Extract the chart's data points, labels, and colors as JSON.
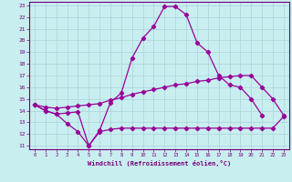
{
  "xlabel": "Windchill (Refroidissement éolien,°C)",
  "background_color": "#c8eef0",
  "grid_color": "#b0d8dc",
  "spine_color": "#770077",
  "line_color": "#990099",
  "xmin": 0,
  "xmax": 23,
  "ymin": 11,
  "ymax": 23,
  "x_ticks": [
    0,
    1,
    2,
    3,
    4,
    5,
    6,
    7,
    8,
    9,
    10,
    11,
    12,
    13,
    14,
    15,
    16,
    17,
    18,
    19,
    20,
    21,
    22,
    23
  ],
  "y_ticks": [
    11,
    12,
    13,
    14,
    15,
    16,
    17,
    18,
    19,
    20,
    21,
    22,
    23
  ],
  "line1_x": [
    0,
    1,
    2,
    3,
    4,
    5,
    6,
    7,
    8,
    9,
    10,
    11,
    12,
    13,
    14,
    15,
    16,
    17,
    18,
    19,
    20,
    21
  ],
  "line1_y": [
    14.5,
    14.0,
    13.7,
    13.8,
    13.9,
    11.0,
    12.3,
    14.7,
    15.5,
    18.5,
    20.2,
    21.2,
    22.9,
    22.9,
    22.2,
    19.8,
    19.0,
    17.0,
    16.2,
    16.0,
    15.0,
    13.6
  ],
  "line2_x": [
    0,
    1,
    2,
    3,
    4,
    5,
    6,
    7,
    8,
    9,
    10,
    11,
    12,
    13,
    14,
    15,
    16,
    17,
    18,
    19,
    20,
    21,
    22,
    23
  ],
  "line2_y": [
    14.5,
    14.3,
    14.2,
    14.3,
    14.4,
    14.5,
    14.6,
    14.9,
    15.1,
    15.4,
    15.6,
    15.8,
    16.0,
    16.2,
    16.3,
    16.5,
    16.6,
    16.8,
    16.9,
    17.0,
    17.0,
    16.0,
    15.0,
    13.6
  ],
  "line3_x": [
    0,
    1,
    2,
    3,
    4,
    5,
    6,
    7,
    8,
    9,
    10,
    11,
    12,
    13,
    14,
    15,
    16,
    17,
    18,
    19,
    20,
    21,
    22,
    23
  ],
  "line3_y": [
    14.5,
    14.0,
    13.7,
    12.9,
    12.2,
    11.0,
    12.2,
    12.4,
    12.5,
    12.5,
    12.5,
    12.5,
    12.5,
    12.5,
    12.5,
    12.5,
    12.5,
    12.5,
    12.5,
    12.5,
    12.5,
    12.5,
    12.5,
    13.5
  ]
}
